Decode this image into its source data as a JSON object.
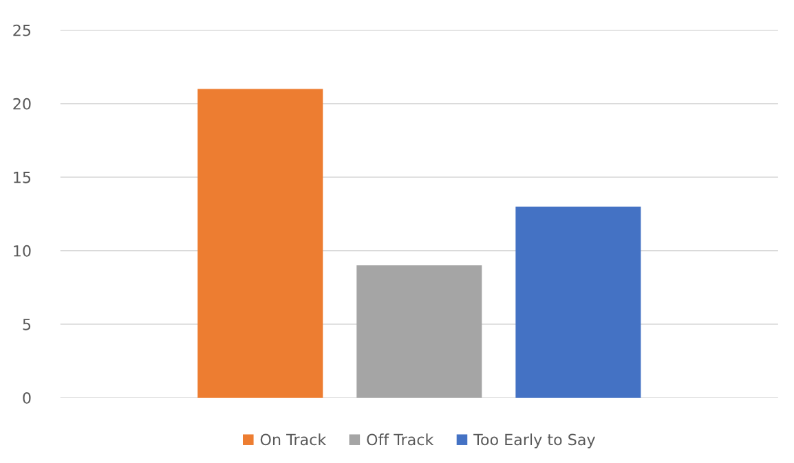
{
  "chart_data": {
    "type": "bar",
    "categories": [
      null
    ],
    "series": [
      {
        "name": "On Track",
        "color": "#ed7d31",
        "values": [
          21
        ]
      },
      {
        "name": "Off Track",
        "color": "#a5a5a5",
        "values": [
          9
        ]
      },
      {
        "name": "Too Early to Say",
        "color": "#4472c4",
        "values": [
          13
        ]
      }
    ],
    "ylim": [
      0,
      25
    ],
    "yticks": [
      0,
      5,
      10,
      15,
      20,
      25
    ],
    "grid": "y",
    "legend": "bottom"
  }
}
